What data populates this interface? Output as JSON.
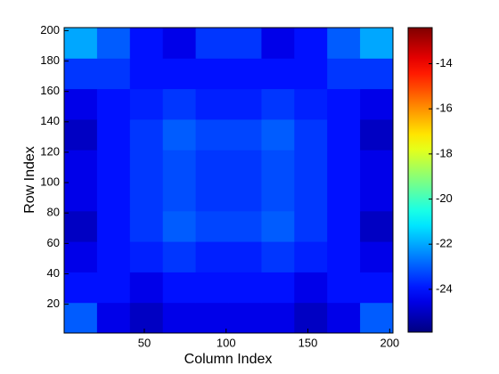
{
  "chart_data": {
    "type": "heatmap",
    "xlabel": "Column Index",
    "ylabel": "Row Index",
    "xlim": [
      1,
      202
    ],
    "ylim": [
      1,
      202
    ],
    "xticks": [
      50,
      100,
      150,
      200
    ],
    "yticks": [
      20,
      40,
      60,
      80,
      100,
      120,
      140,
      160,
      180,
      200
    ],
    "colormap": "jet",
    "clim": [
      -25.9,
      -12.4
    ],
    "cticks": [
      -24,
      -22,
      -20,
      -18,
      -16,
      -14
    ],
    "z": [
      [
        -23,
        -24.5,
        -25,
        -24.5,
        -24.5,
        -24.5,
        -24.5,
        -25,
        -24.5,
        -23
      ],
      [
        -24,
        -24,
        -24.5,
        -24,
        -24,
        -24,
        -24,
        -24.5,
        -24,
        -24
      ],
      [
        -24.5,
        -24,
        -23.8,
        -23.5,
        -23.8,
        -23.8,
        -23.5,
        -23.8,
        -24,
        -24.5
      ],
      [
        -25,
        -24,
        -23.5,
        -23,
        -23.3,
        -23.3,
        -23,
        -23.5,
        -24,
        -25
      ],
      [
        -24.5,
        -24,
        -23.5,
        -23.2,
        -23.5,
        -23.5,
        -23.2,
        -23.5,
        -24,
        -24.5
      ],
      [
        -24.5,
        -24,
        -23.5,
        -23.2,
        -23.5,
        -23.5,
        -23.2,
        -23.5,
        -24,
        -24.5
      ],
      [
        -25,
        -24,
        -23.5,
        -23,
        -23.3,
        -23.3,
        -23,
        -23.5,
        -24,
        -25
      ],
      [
        -24.5,
        -24,
        -23.8,
        -23.5,
        -23.8,
        -23.8,
        -23.5,
        -23.8,
        -24,
        -24.5
      ],
      [
        -23.5,
        -23.5,
        -24,
        -24,
        -24,
        -24,
        -24,
        -24,
        -23.5,
        -23.5
      ],
      [
        -22,
        -23,
        -24,
        -24.5,
        -23.5,
        -23.5,
        -24.5,
        -24,
        -23,
        -22
      ]
    ]
  }
}
